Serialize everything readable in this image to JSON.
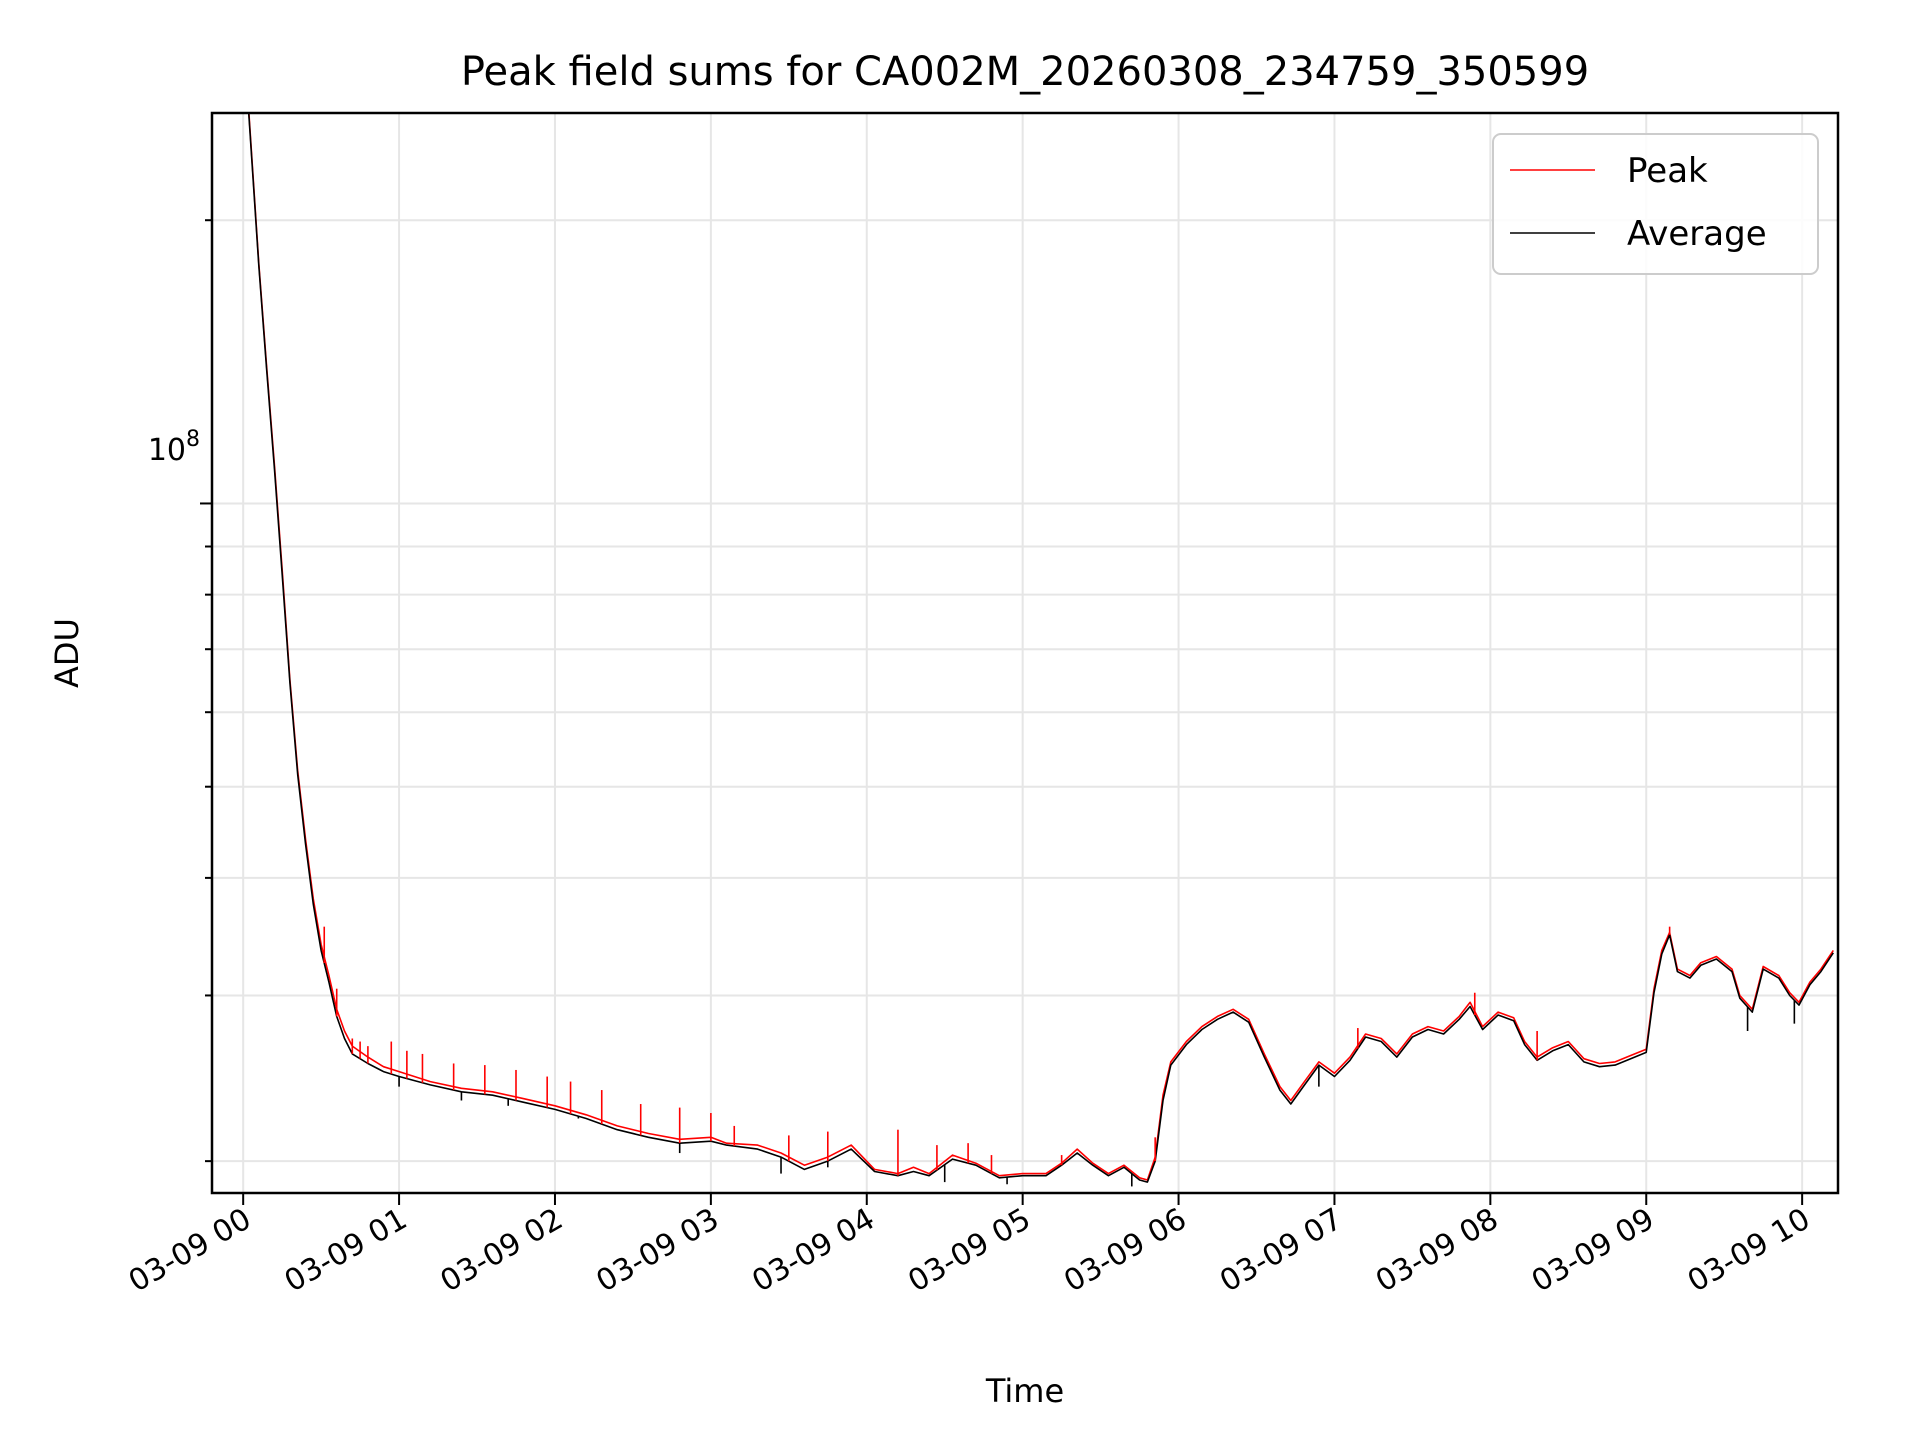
{
  "chart_data": {
    "type": "line",
    "title": "Peak field sums for CA002M_20260308_234759_350599",
    "xlabel": "Time",
    "ylabel": "ADU",
    "yscale": "log",
    "ylim": [
      18500000,
      260000000
    ],
    "xlim": [
      -0.2,
      10.23
    ],
    "grid": true,
    "legend_position": "top-right",
    "x_tick_labels": [
      "03-09 00",
      "03-09 01",
      "03-09 02",
      "03-09 03",
      "03-09 04",
      "03-09 05",
      "03-09 06",
      "03-09 07",
      "03-09 08",
      "03-09 09",
      "03-09 10"
    ],
    "y_tick_label": {
      "base": "10",
      "exponent": "8",
      "value": 100000000
    },
    "x_units": "hours after 03-09 00:00",
    "series": [
      {
        "name": "Peak",
        "color": "#ff0000",
        "points": [
          [
            0.03,
            270000000
          ],
          [
            0.1,
            180000000
          ],
          [
            0.15,
            140000000
          ],
          [
            0.2,
            110000000
          ],
          [
            0.25,
            85000000
          ],
          [
            0.3,
            65000000
          ],
          [
            0.35,
            52000000
          ],
          [
            0.4,
            44000000
          ],
          [
            0.45,
            38000000
          ],
          [
            0.5,
            34000000
          ],
          [
            0.55,
            31500000
          ],
          [
            0.6,
            29000000
          ],
          [
            0.65,
            27500000
          ],
          [
            0.7,
            26500000
          ],
          [
            0.8,
            25800000
          ],
          [
            0.9,
            25200000
          ],
          [
            1.0,
            24900000
          ],
          [
            1.2,
            24300000
          ],
          [
            1.4,
            23900000
          ],
          [
            1.6,
            23700000
          ],
          [
            1.8,
            23300000
          ],
          [
            2.0,
            22900000
          ],
          [
            2.2,
            22400000
          ],
          [
            2.4,
            21800000
          ],
          [
            2.6,
            21400000
          ],
          [
            2.8,
            21100000
          ],
          [
            3.0,
            21200000
          ],
          [
            3.1,
            20900000
          ],
          [
            3.3,
            20800000
          ],
          [
            3.45,
            20400000
          ],
          [
            3.6,
            19800000
          ],
          [
            3.75,
            20200000
          ],
          [
            3.9,
            20800000
          ],
          [
            4.05,
            19600000
          ],
          [
            4.2,
            19400000
          ],
          [
            4.3,
            19700000
          ],
          [
            4.4,
            19400000
          ],
          [
            4.55,
            20300000
          ],
          [
            4.7,
            19900000
          ],
          [
            4.85,
            19300000
          ],
          [
            5.0,
            19400000
          ],
          [
            5.15,
            19400000
          ],
          [
            5.25,
            19900000
          ],
          [
            5.35,
            20600000
          ],
          [
            5.45,
            19900000
          ],
          [
            5.55,
            19400000
          ],
          [
            5.65,
            19800000
          ],
          [
            5.75,
            19200000
          ],
          [
            5.8,
            19100000
          ],
          [
            5.85,
            20200000
          ],
          [
            5.9,
            23500000
          ],
          [
            5.95,
            25500000
          ],
          [
            6.05,
            26800000
          ],
          [
            6.15,
            27800000
          ],
          [
            6.25,
            28500000
          ],
          [
            6.35,
            29000000
          ],
          [
            6.45,
            28300000
          ],
          [
            6.55,
            26000000
          ],
          [
            6.65,
            24000000
          ],
          [
            6.72,
            23200000
          ],
          [
            6.8,
            24200000
          ],
          [
            6.9,
            25500000
          ],
          [
            7.0,
            24800000
          ],
          [
            7.1,
            25800000
          ],
          [
            7.2,
            27300000
          ],
          [
            7.3,
            27000000
          ],
          [
            7.4,
            26000000
          ],
          [
            7.5,
            27300000
          ],
          [
            7.6,
            27800000
          ],
          [
            7.7,
            27500000
          ],
          [
            7.8,
            28500000
          ],
          [
            7.87,
            29500000
          ],
          [
            7.95,
            27800000
          ],
          [
            8.05,
            28800000
          ],
          [
            8.15,
            28400000
          ],
          [
            8.22,
            26800000
          ],
          [
            8.3,
            25800000
          ],
          [
            8.4,
            26400000
          ],
          [
            8.5,
            26800000
          ],
          [
            8.6,
            25700000
          ],
          [
            8.7,
            25400000
          ],
          [
            8.8,
            25500000
          ],
          [
            8.9,
            25900000
          ],
          [
            9.0,
            26300000
          ],
          [
            9.05,
            30500000
          ],
          [
            9.1,
            33500000
          ],
          [
            9.15,
            35000000
          ],
          [
            9.2,
            32000000
          ],
          [
            9.28,
            31500000
          ],
          [
            9.35,
            32500000
          ],
          [
            9.45,
            33000000
          ],
          [
            9.55,
            32000000
          ],
          [
            9.6,
            30000000
          ],
          [
            9.68,
            29000000
          ],
          [
            9.75,
            32200000
          ],
          [
            9.85,
            31500000
          ],
          [
            9.92,
            30200000
          ],
          [
            9.98,
            29500000
          ],
          [
            10.05,
            31000000
          ],
          [
            10.12,
            32000000
          ],
          [
            10.2,
            33500000
          ]
        ]
      },
      {
        "name": "Average",
        "color": "#000000",
        "points": [
          [
            0.03,
            268000000
          ],
          [
            0.1,
            179000000
          ],
          [
            0.15,
            139000000
          ],
          [
            0.2,
            109000000
          ],
          [
            0.25,
            84000000
          ],
          [
            0.3,
            64500000
          ],
          [
            0.35,
            51500000
          ],
          [
            0.4,
            43500000
          ],
          [
            0.45,
            37500000
          ],
          [
            0.5,
            33500000
          ],
          [
            0.55,
            31000000
          ],
          [
            0.6,
            28500000
          ],
          [
            0.65,
            27000000
          ],
          [
            0.7,
            26000000
          ],
          [
            0.8,
            25400000
          ],
          [
            0.9,
            24900000
          ],
          [
            1.0,
            24600000
          ],
          [
            1.2,
            24100000
          ],
          [
            1.4,
            23700000
          ],
          [
            1.6,
            23500000
          ],
          [
            1.8,
            23100000
          ],
          [
            2.0,
            22700000
          ],
          [
            2.2,
            22200000
          ],
          [
            2.4,
            21600000
          ],
          [
            2.6,
            21200000
          ],
          [
            2.8,
            20900000
          ],
          [
            3.0,
            21000000
          ],
          [
            3.1,
            20800000
          ],
          [
            3.3,
            20600000
          ],
          [
            3.45,
            20200000
          ],
          [
            3.6,
            19600000
          ],
          [
            3.75,
            20000000
          ],
          [
            3.9,
            20600000
          ],
          [
            4.05,
            19500000
          ],
          [
            4.2,
            19300000
          ],
          [
            4.3,
            19500000
          ],
          [
            4.4,
            19300000
          ],
          [
            4.55,
            20100000
          ],
          [
            4.7,
            19800000
          ],
          [
            4.85,
            19200000
          ],
          [
            5.0,
            19300000
          ],
          [
            5.15,
            19300000
          ],
          [
            5.25,
            19800000
          ],
          [
            5.35,
            20400000
          ],
          [
            5.45,
            19800000
          ],
          [
            5.55,
            19300000
          ],
          [
            5.65,
            19700000
          ],
          [
            5.75,
            19100000
          ],
          [
            5.8,
            19000000
          ],
          [
            5.85,
            20000000
          ],
          [
            5.9,
            23200000
          ],
          [
            5.95,
            25300000
          ],
          [
            6.05,
            26600000
          ],
          [
            6.15,
            27600000
          ],
          [
            6.25,
            28300000
          ],
          [
            6.35,
            28800000
          ],
          [
            6.45,
            28100000
          ],
          [
            6.55,
            25800000
          ],
          [
            6.65,
            23800000
          ],
          [
            6.72,
            23000000
          ],
          [
            6.8,
            24000000
          ],
          [
            6.9,
            25300000
          ],
          [
            7.0,
            24600000
          ],
          [
            7.1,
            25600000
          ],
          [
            7.2,
            27100000
          ],
          [
            7.3,
            26800000
          ],
          [
            7.4,
            25800000
          ],
          [
            7.5,
            27100000
          ],
          [
            7.6,
            27600000
          ],
          [
            7.7,
            27300000
          ],
          [
            7.8,
            28300000
          ],
          [
            7.87,
            29200000
          ],
          [
            7.95,
            27600000
          ],
          [
            8.05,
            28600000
          ],
          [
            8.15,
            28200000
          ],
          [
            8.22,
            26600000
          ],
          [
            8.3,
            25600000
          ],
          [
            8.4,
            26200000
          ],
          [
            8.5,
            26600000
          ],
          [
            8.6,
            25500000
          ],
          [
            8.7,
            25200000
          ],
          [
            8.8,
            25300000
          ],
          [
            8.9,
            25700000
          ],
          [
            9.0,
            26100000
          ],
          [
            9.05,
            30200000
          ],
          [
            9.1,
            33200000
          ],
          [
            9.15,
            34800000
          ],
          [
            9.2,
            31800000
          ],
          [
            9.28,
            31300000
          ],
          [
            9.35,
            32300000
          ],
          [
            9.45,
            32800000
          ],
          [
            9.55,
            31800000
          ],
          [
            9.6,
            29800000
          ],
          [
            9.68,
            28800000
          ],
          [
            9.75,
            32000000
          ],
          [
            9.85,
            31300000
          ],
          [
            9.92,
            30000000
          ],
          [
            9.98,
            29300000
          ],
          [
            10.05,
            30800000
          ],
          [
            10.12,
            31800000
          ],
          [
            10.2,
            33300000
          ]
        ]
      }
    ],
    "peak_spikes": [
      [
        0.52,
        35500000
      ],
      [
        0.6,
        30500000
      ],
      [
        0.7,
        27000000
      ],
      [
        0.75,
        26800000
      ],
      [
        0.8,
        26500000
      ],
      [
        0.95,
        26800000
      ],
      [
        1.05,
        26200000
      ],
      [
        1.15,
        26000000
      ],
      [
        1.35,
        25400000
      ],
      [
        1.55,
        25300000
      ],
      [
        1.75,
        25000000
      ],
      [
        1.95,
        24600000
      ],
      [
        2.1,
        24300000
      ],
      [
        2.3,
        23800000
      ],
      [
        2.55,
        23000000
      ],
      [
        2.8,
        22800000
      ],
      [
        3.0,
        22500000
      ],
      [
        3.15,
        21800000
      ],
      [
        3.5,
        21300000
      ],
      [
        3.75,
        21500000
      ],
      [
        4.2,
        21600000
      ],
      [
        4.45,
        20800000
      ],
      [
        4.65,
        20900000
      ],
      [
        4.8,
        20300000
      ],
      [
        5.25,
        20300000
      ],
      [
        5.85,
        21200000
      ],
      [
        7.15,
        27700000
      ],
      [
        7.9,
        30200000
      ],
      [
        8.3,
        27500000
      ],
      [
        9.15,
        35500000
      ]
    ],
    "average_dips": [
      [
        1.0,
        24000000
      ],
      [
        1.4,
        23200000
      ],
      [
        1.7,
        22900000
      ],
      [
        2.15,
        22200000
      ],
      [
        2.8,
        20400000
      ],
      [
        3.45,
        19400000
      ],
      [
        3.75,
        19700000
      ],
      [
        4.5,
        19000000
      ],
      [
        4.9,
        18900000
      ],
      [
        5.7,
        18800000
      ],
      [
        6.9,
        24000000
      ],
      [
        9.65,
        27500000
      ],
      [
        9.95,
        28000000
      ]
    ]
  }
}
